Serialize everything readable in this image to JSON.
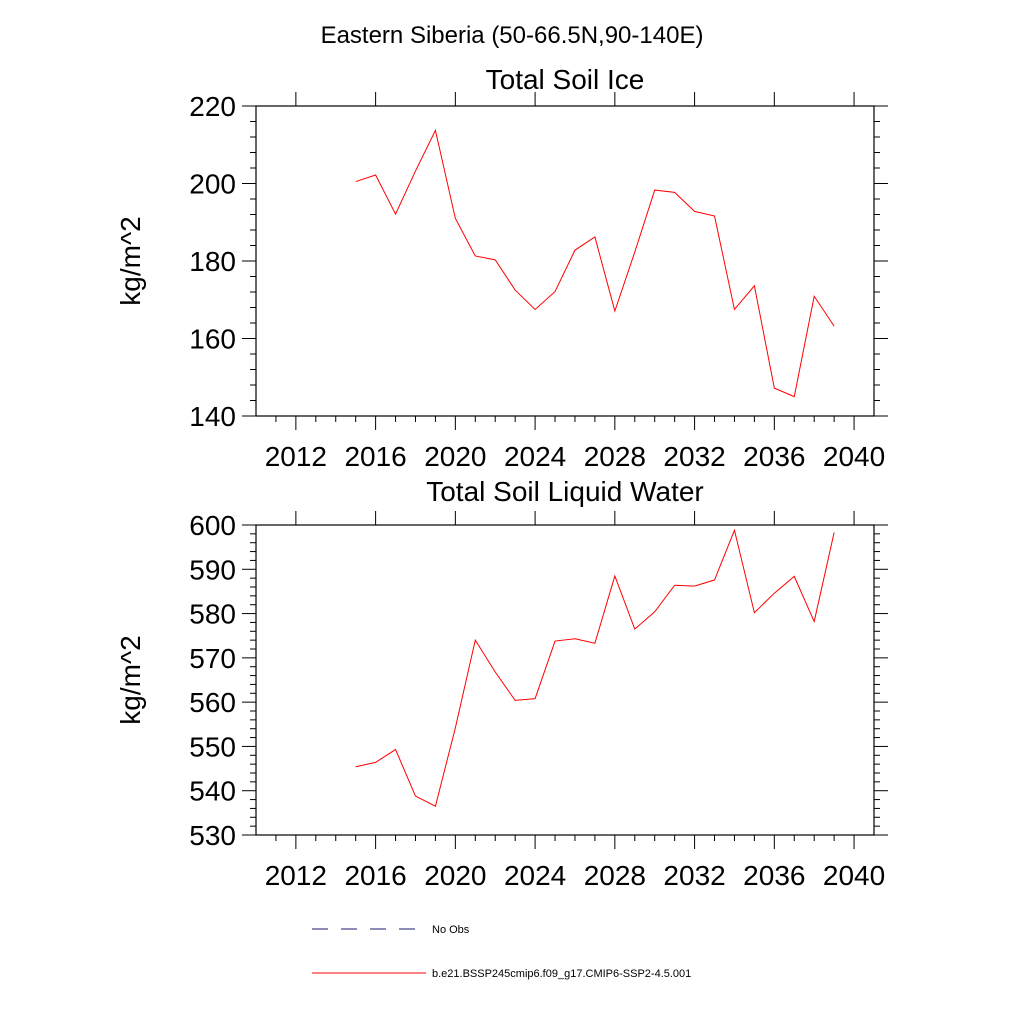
{
  "figure": {
    "title": "Eastern Siberia (50-66.5N,90-140E)"
  },
  "colors": {
    "model_line": "#ff0000",
    "obs_line": "#1a1a6e",
    "axis": "#000000"
  },
  "legend": {
    "placement": "bottom-center",
    "items": [
      {
        "label": "No Obs",
        "style": "dashed",
        "color": "#1a1a6e"
      },
      {
        "label": "b.e21.BSSP245cmip6.f09_g17.CMIP6-SSP2-4.5.001",
        "style": "solid",
        "color": "#ff0000"
      }
    ]
  },
  "chart_data": [
    {
      "type": "line",
      "title": "Total Soil Ice",
      "xlabel": "",
      "ylabel": "kg/m^2",
      "xlim": [
        2010,
        2041
      ],
      "ylim": [
        140,
        220
      ],
      "xticks": [
        2012,
        2016,
        2020,
        2024,
        2028,
        2032,
        2036,
        2040
      ],
      "yticks": [
        140,
        160,
        180,
        200,
        220
      ],
      "grid": false,
      "series": [
        {
          "name": "b.e21.BSSP245cmip6.f09_g17.CMIP6-SSP2-4.5.001",
          "x": [
            2015,
            2016,
            2017,
            2018,
            2019,
            2020,
            2021,
            2022,
            2023,
            2024,
            2025,
            2026,
            2027,
            2028,
            2029,
            2030,
            2031,
            2032,
            2033,
            2034,
            2035,
            2036,
            2037,
            2038,
            2039
          ],
          "y": [
            200.5,
            202.2,
            192.1,
            203.2,
            213.7,
            191.0,
            181.3,
            180.3,
            172.5,
            167.5,
            172.1,
            182.8,
            186.2,
            167.1,
            182.3,
            198.3,
            197.7,
            192.8,
            191.6,
            167.5,
            173.6,
            147.2,
            145.0,
            170.9,
            163.2
          ]
        }
      ]
    },
    {
      "type": "line",
      "title": "Total Soil Liquid Water",
      "xlabel": "",
      "ylabel": "kg/m^2",
      "xlim": [
        2010,
        2041
      ],
      "ylim": [
        530,
        600
      ],
      "xticks": [
        2012,
        2016,
        2020,
        2024,
        2028,
        2032,
        2036,
        2040
      ],
      "yticks": [
        530,
        540,
        550,
        560,
        570,
        580,
        590,
        600
      ],
      "grid": false,
      "series": [
        {
          "name": "b.e21.BSSP245cmip6.f09_g17.CMIP6-SSP2-4.5.001",
          "x": [
            2015,
            2016,
            2017,
            2018,
            2019,
            2020,
            2021,
            2022,
            2023,
            2024,
            2025,
            2026,
            2027,
            2028,
            2029,
            2030,
            2031,
            2032,
            2033,
            2034,
            2035,
            2036,
            2037,
            2038,
            2039
          ],
          "y": [
            545.4,
            546.4,
            549.3,
            538.8,
            536.5,
            554.2,
            574.0,
            566.8,
            560.4,
            560.8,
            573.8,
            574.3,
            573.3,
            588.5,
            576.5,
            580.4,
            586.4,
            586.2,
            587.6,
            598.8,
            580.2,
            584.6,
            588.4,
            578.2,
            598.3
          ]
        }
      ]
    }
  ]
}
